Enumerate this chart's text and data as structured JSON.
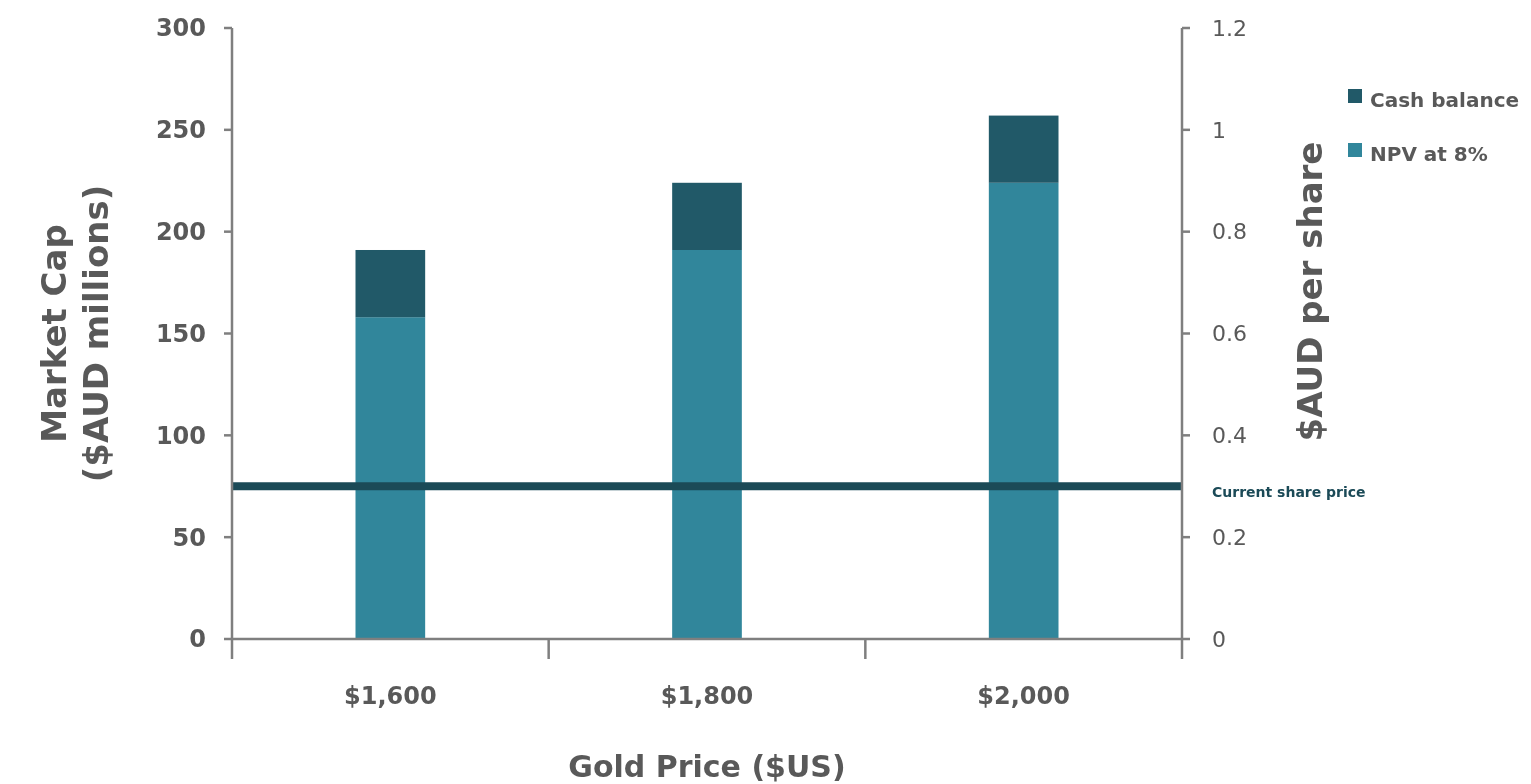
{
  "chart_data": {
    "type": "bar",
    "stacked": true,
    "xlabel": "Gold Price ($US)",
    "ylabel": "Market Cap\n($AUD millions)",
    "y2label": "$AUD per share",
    "categories": [
      "$1,600",
      "$1,800",
      "$2,000"
    ],
    "series": [
      {
        "name": "NPV at 8%",
        "color": "#31869b",
        "values": [
          158,
          191,
          224
        ]
      },
      {
        "name": "Cash balance",
        "color": "#215968",
        "values": [
          33,
          33,
          33
        ]
      }
    ],
    "ylim": [
      0,
      300
    ],
    "yticks": [
      0,
      50,
      100,
      150,
      200,
      250,
      300
    ],
    "y2lim": [
      0,
      1.2
    ],
    "y2ticks": [
      0,
      {
        "value": 0.2,
        "label": "0.2"
      },
      {
        "value": 0.4,
        "label": "0.4"
      },
      {
        "value": 0.6,
        "label": "0.6"
      },
      {
        "value": 0.8,
        "label": "0.8"
      },
      1,
      {
        "value": 1.2,
        "label": "1.2"
      }
    ],
    "ref_lines": [
      {
        "axis": "y2",
        "value": 0.3,
        "label": "Current share price",
        "color": "#1b4a57"
      }
    ],
    "legend": "top right",
    "grid": false
  }
}
